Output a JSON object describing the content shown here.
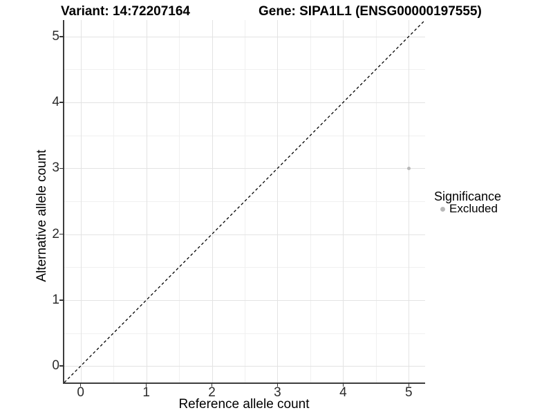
{
  "titles": {
    "variant": "Variant: 14:72207164",
    "gene": "Gene: SIPA1L1 (ENSG00000197555)"
  },
  "legend": {
    "title": "Significance",
    "items": [
      {
        "label": "Excluded",
        "color": "#b8b8b8"
      }
    ]
  },
  "colors": {
    "axis_line": "#3c3c3c",
    "tick": "#333333",
    "tick_label": "#2b2b2b"
  },
  "chart_data": {
    "type": "scatter",
    "title_left": "Variant: 14:72207164",
    "title_right": "Gene: SIPA1L1 (ENSG00000197555)",
    "xlabel": "Reference allele count",
    "ylabel": "Alternative allele count",
    "xlim": [
      -0.25,
      5.25
    ],
    "ylim": [
      -0.25,
      5.25
    ],
    "x_ticks": [
      0,
      1,
      2,
      3,
      4,
      5
    ],
    "y_ticks": [
      0,
      1,
      2,
      3,
      4,
      5
    ],
    "grid": {
      "major": [
        0,
        1,
        2,
        3,
        4,
        5
      ],
      "minor": [
        0.5,
        1.5,
        2.5,
        3.5,
        4.5
      ],
      "major_color": "#e3e3e3",
      "minor_color": "#f0f0f0"
    },
    "reference_line": {
      "slope": 1,
      "intercept": 0,
      "style": "dashed",
      "color": "#000000"
    },
    "series": [
      {
        "name": "Excluded",
        "color": "#b8b8b8",
        "point_diameter": 5,
        "points": [
          [
            5,
            3
          ]
        ]
      }
    ],
    "legend_position": "right",
    "legend_title": "Significance"
  }
}
